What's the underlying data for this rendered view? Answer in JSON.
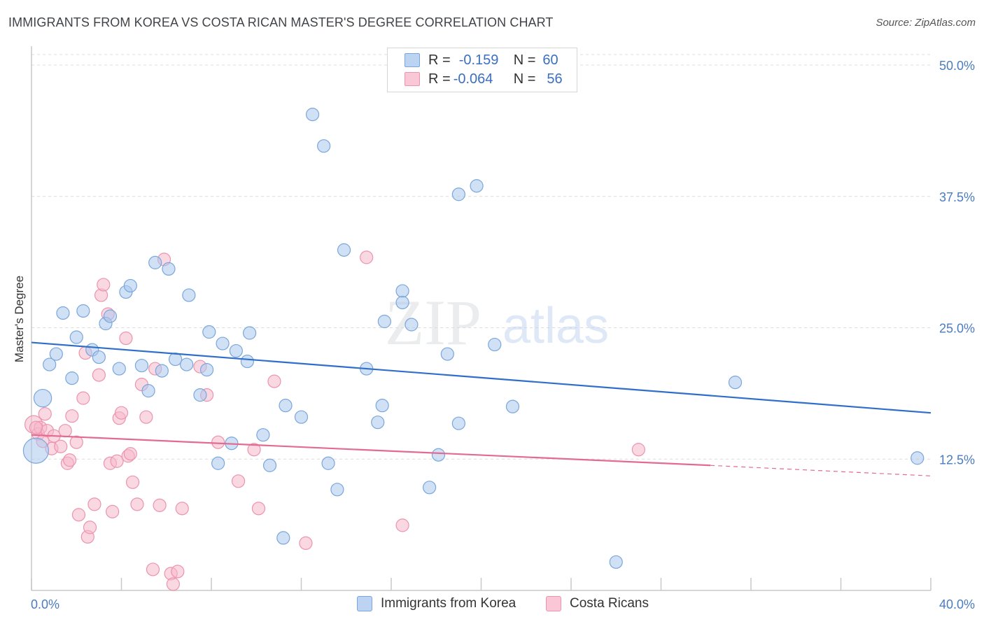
{
  "header": {
    "title": "IMMIGRANTS FROM KOREA VS COSTA RICAN MASTER'S DEGREE CORRELATION CHART",
    "source": "Source: ZipAtlas.com"
  },
  "watermark": {
    "zip": "ZIP",
    "atlas": "atlas"
  },
  "legend": {
    "korea": {
      "r_label": "R =",
      "r_value": "-0.159",
      "n_label": "N =",
      "n_value": "60"
    },
    "costa": {
      "r_label": "R =",
      "r_value": "-0.064",
      "n_label": "N =",
      "n_value": "56"
    }
  },
  "colors": {
    "korea_fill": "#a9c8ef",
    "korea_stroke": "#7aa6dc",
    "korea_line": "#2f6fc9",
    "costa_fill": "#f6b8cb",
    "costa_stroke": "#ec93ad",
    "costa_line": "#e36a92",
    "grid": "#dcdcdc",
    "axis": "#c8c8c8",
    "tick_text": "#4a7cc0"
  },
  "chart_data": {
    "type": "scatter",
    "title": "IMMIGRANTS FROM KOREA VS COSTA RICAN MASTER'S DEGREE CORRELATION CHART",
    "xlabel": "",
    "ylabel": "Master's Degree",
    "xlim": [
      0,
      40
    ],
    "ylim": [
      0,
      50
    ],
    "x_tick_labels": [
      "0.0%",
      "40.0%"
    ],
    "y_ticks": [
      12.5,
      25.0,
      37.5,
      50.0
    ],
    "y_tick_labels": [
      "12.5%",
      "25.0%",
      "37.5%",
      "50.0%"
    ],
    "grid": true,
    "legend_position": "top-center",
    "series": [
      {
        "name": "Immigrants from Korea",
        "r": -0.159,
        "n": 60,
        "trend": {
          "x": [
            0,
            40
          ],
          "y": [
            23.6,
            16.9
          ]
        },
        "points": [
          [
            0.2,
            13.3,
            2.0
          ],
          [
            0.5,
            18.3,
            1.4
          ],
          [
            0.8,
            21.5,
            1.0
          ],
          [
            1.1,
            22.5,
            1.0
          ],
          [
            1.4,
            26.4,
            1.0
          ],
          [
            1.8,
            20.2,
            1.0
          ],
          [
            2.0,
            24.1,
            1.0
          ],
          [
            2.3,
            26.6,
            1.0
          ],
          [
            2.7,
            22.9,
            1.0
          ],
          [
            3.0,
            22.2,
            1.0
          ],
          [
            3.3,
            25.4,
            1.0
          ],
          [
            3.5,
            26.1,
            1.0
          ],
          [
            3.9,
            21.1,
            1.0
          ],
          [
            4.2,
            28.4,
            1.0
          ],
          [
            4.4,
            29.0,
            1.0
          ],
          [
            4.9,
            21.4,
            1.0
          ],
          [
            5.2,
            19.0,
            1.0
          ],
          [
            5.5,
            31.2,
            1.0
          ],
          [
            5.8,
            20.9,
            1.0
          ],
          [
            6.1,
            30.6,
            1.0
          ],
          [
            6.4,
            22.0,
            1.0
          ],
          [
            6.9,
            21.5,
            1.0
          ],
          [
            7.0,
            28.1,
            1.0
          ],
          [
            7.5,
            18.6,
            1.0
          ],
          [
            7.8,
            21.0,
            1.0
          ],
          [
            7.9,
            24.6,
            1.0
          ],
          [
            8.5,
            23.5,
            1.0
          ],
          [
            8.9,
            14.0,
            1.0
          ],
          [
            9.1,
            22.8,
            1.0
          ],
          [
            9.6,
            21.8,
            1.0
          ],
          [
            9.7,
            24.5,
            1.0
          ],
          [
            10.3,
            14.8,
            1.0
          ],
          [
            8.3,
            12.1,
            1.0
          ],
          [
            10.6,
            11.9,
            1.0
          ],
          [
            11.2,
            5.0,
            1.0
          ],
          [
            11.3,
            17.6,
            1.0
          ],
          [
            12.0,
            16.5,
            1.0
          ],
          [
            12.5,
            45.3,
            1.0
          ],
          [
            13.0,
            42.3,
            1.0
          ],
          [
            13.2,
            12.1,
            1.0
          ],
          [
            13.6,
            9.6,
            1.0
          ],
          [
            13.9,
            32.4,
            1.0
          ],
          [
            14.9,
            21.1,
            1.0
          ],
          [
            15.4,
            16.0,
            1.0
          ],
          [
            15.6,
            17.6,
            1.0
          ],
          [
            15.7,
            25.6,
            1.0
          ],
          [
            16.5,
            28.5,
            1.0
          ],
          [
            16.5,
            27.4,
            1.0
          ],
          [
            16.9,
            25.3,
            1.0
          ],
          [
            17.7,
            9.8,
            1.0
          ],
          [
            18.1,
            12.9,
            1.0
          ],
          [
            18.5,
            22.5,
            1.0
          ],
          [
            19.0,
            37.7,
            1.0
          ],
          [
            19.0,
            15.9,
            1.0
          ],
          [
            19.8,
            38.5,
            1.0
          ],
          [
            20.6,
            23.4,
            1.0
          ],
          [
            21.4,
            17.5,
            1.0
          ],
          [
            26.0,
            2.7,
            1.0
          ],
          [
            31.3,
            19.8,
            1.0
          ],
          [
            39.4,
            12.6,
            1.0
          ]
        ]
      },
      {
        "name": "Costa Ricans",
        "r": -0.064,
        "n": 56,
        "trend": {
          "x": [
            0,
            30.2
          ],
          "y": [
            14.8,
            11.9
          ]
        },
        "trend_dashed": {
          "x": [
            30.2,
            40
          ],
          "y": [
            11.9,
            10.9
          ]
        },
        "points": [
          [
            0.1,
            15.8,
            1.4
          ],
          [
            0.3,
            14.9,
            1.0
          ],
          [
            0.4,
            15.5,
            1.0
          ],
          [
            0.6,
            16.8,
            1.0
          ],
          [
            0.7,
            15.2,
            1.0
          ],
          [
            0.9,
            13.5,
            1.0
          ],
          [
            1.0,
            14.7,
            1.0
          ],
          [
            1.3,
            13.7,
            1.0
          ],
          [
            1.5,
            15.2,
            1.0
          ],
          [
            1.6,
            12.1,
            1.0
          ],
          [
            1.7,
            12.4,
            1.0
          ],
          [
            1.8,
            16.6,
            1.0
          ],
          [
            2.0,
            14.1,
            1.0
          ],
          [
            2.1,
            7.2,
            1.0
          ],
          [
            2.3,
            18.3,
            1.0
          ],
          [
            2.4,
            22.6,
            1.0
          ],
          [
            2.5,
            5.1,
            1.0
          ],
          [
            2.6,
            6.0,
            1.0
          ],
          [
            2.8,
            8.2,
            1.0
          ],
          [
            3.0,
            20.5,
            1.0
          ],
          [
            3.1,
            28.1,
            1.0
          ],
          [
            3.2,
            29.1,
            1.0
          ],
          [
            3.4,
            26.3,
            1.0
          ],
          [
            3.5,
            12.1,
            1.0
          ],
          [
            3.6,
            7.5,
            1.0
          ],
          [
            3.8,
            12.3,
            1.0
          ],
          [
            3.9,
            16.4,
            1.0
          ],
          [
            4.0,
            16.9,
            1.0
          ],
          [
            4.2,
            24.0,
            1.0
          ],
          [
            4.3,
            12.8,
            1.0
          ],
          [
            4.4,
            13.0,
            1.0
          ],
          [
            4.5,
            10.3,
            1.0
          ],
          [
            4.7,
            8.2,
            1.0
          ],
          [
            4.9,
            19.6,
            1.0
          ],
          [
            5.1,
            16.5,
            1.0
          ],
          [
            5.4,
            2.0,
            1.0
          ],
          [
            5.5,
            21.1,
            1.0
          ],
          [
            5.7,
            8.1,
            1.0
          ],
          [
            5.9,
            31.5,
            1.0
          ],
          [
            6.2,
            1.6,
            1.0
          ],
          [
            6.3,
            0.6,
            1.0
          ],
          [
            6.5,
            1.8,
            1.0
          ],
          [
            6.7,
            7.8,
            1.0
          ],
          [
            7.5,
            21.3,
            1.0
          ],
          [
            7.8,
            18.6,
            1.0
          ],
          [
            8.3,
            14.1,
            1.0
          ],
          [
            9.2,
            10.4,
            1.0
          ],
          [
            9.9,
            13.4,
            1.0
          ],
          [
            10.1,
            7.8,
            1.0
          ],
          [
            10.8,
            19.9,
            1.0
          ],
          [
            12.2,
            4.5,
            1.0
          ],
          [
            14.9,
            31.7,
            1.0
          ],
          [
            16.5,
            6.2,
            1.0
          ],
          [
            27.0,
            13.4,
            1.0
          ],
          [
            0.2,
            15.5,
            1.0
          ],
          [
            0.5,
            14.2,
            1.0
          ]
        ]
      }
    ]
  },
  "bottom_legend": {
    "korea": "Immigrants from Korea",
    "costa": "Costa Ricans"
  }
}
